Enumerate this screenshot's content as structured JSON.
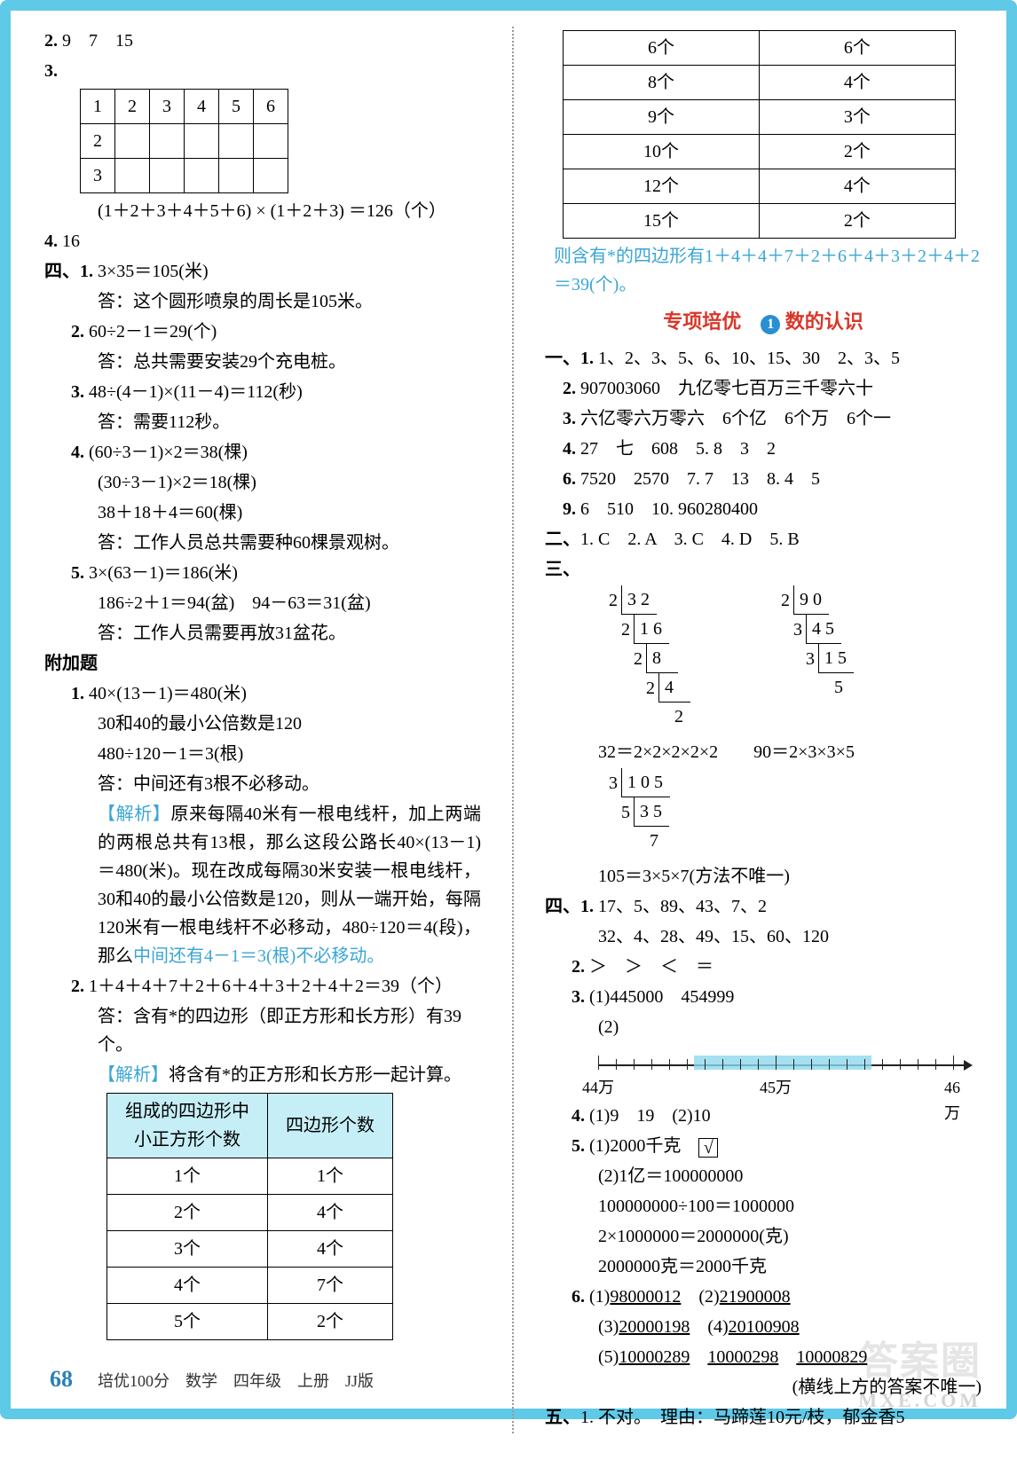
{
  "left": {
    "q2": {
      "label": "2.",
      "vals": "9　7　15"
    },
    "q3": {
      "label": "3.",
      "table_rows": [
        [
          "1",
          "2",
          "3",
          "4",
          "5",
          "6"
        ],
        [
          "2",
          "",
          "",
          "",
          "",
          ""
        ],
        [
          "3",
          "",
          "",
          "",
          "",
          ""
        ]
      ],
      "expr": "(1＋2＋3＋4＋5＋6) × (1＋2＋3) ＝126（个）"
    },
    "q4": {
      "label": "4.",
      "val": "16"
    },
    "sec4": {
      "label": "四、",
      "items": [
        {
          "n": "1.",
          "lines": [
            "3×35＝105(米)",
            "答：这个圆形喷泉的周长是105米。"
          ]
        },
        {
          "n": "2.",
          "lines": [
            "60÷2－1＝29(个)",
            "答：总共需要安装29个充电桩。"
          ]
        },
        {
          "n": "3.",
          "lines": [
            "48÷(4－1)×(11－4)＝112(秒)",
            "答：需要112秒。"
          ]
        },
        {
          "n": "4.",
          "lines": [
            "(60÷3－1)×2＝38(棵)",
            "(30÷3－1)×2＝18(棵)",
            "38＋18＋4＝60(棵)",
            "答：工作人员总共需要种60棵景观树。"
          ]
        },
        {
          "n": "5.",
          "lines": [
            "3×(63－1)＝186(米)",
            "186÷2＋1＝94(盆)　94－63＝31(盆)",
            "答：工作人员需要再放31盆花。"
          ]
        }
      ]
    },
    "extra": {
      "title": "附加题",
      "q1": {
        "n": "1.",
        "lines": [
          "40×(13－1)＝480(米)",
          "30和40的最小公倍数是120",
          "480÷120－1＝3(根)",
          "答：中间还有3根不必移动。"
        ],
        "analysis_label": "【解析】",
        "analysis": "原来每隔40米有一根电线杆，加上两端的两根总共有13根，那么这段公路长40×(13－1)＝480(米)。现在改成每隔30米安装一根电线杆，30和40的最小公倍数是120，则从一端开始，每隔120米有一根电线杆不必移动，480÷120＝4(段)，那么",
        "analysis_hl": "中间还有4－1＝3(根)不必移动。"
      },
      "q2": {
        "n": "2.",
        "lines": [
          "1＋4＋4＋7＋2＋6＋4＋3＋2＋4＋2＝39（个）",
          "答：含有*的四边形（即正方形和长方形）有39个。"
        ],
        "analysis_label": "【解析】",
        "analysis": "将含有*的正方形和长方形一起计算。",
        "table_header": [
          "组成的四边形中\n小正方形个数",
          "四边形个数"
        ],
        "table_rows": [
          [
            "1个",
            "1个"
          ],
          [
            "2个",
            "4个"
          ],
          [
            "3个",
            "4个"
          ],
          [
            "4个",
            "7个"
          ],
          [
            "5个",
            "2个"
          ]
        ]
      }
    }
  },
  "right": {
    "cont_table_rows": [
      [
        "6个",
        "6个"
      ],
      [
        "8个",
        "4个"
      ],
      [
        "9个",
        "3个"
      ],
      [
        "10个",
        "2个"
      ],
      [
        "12个",
        "4个"
      ],
      [
        "15个",
        "2个"
      ]
    ],
    "cont_hl": "则含有*的四边形有1＋4＋4＋7＋2＋6＋4＋3＋2＋4＋2＝39(个)。",
    "section_title_a": "专项培优",
    "section_title_b": "数的认识",
    "sec1": {
      "label": "一、",
      "items": [
        "1. 1、2、3、5、6、10、15、30　2、3、5",
        "2. 907003060　九亿零七百万三千零六十",
        "3. 六亿零六万零六　6个亿　6个万　6个一",
        "4. 27　七　608　5. 8　3　2",
        "6. 7520　2570　7. 7　13　8. 4　5",
        "9. 6　510　10. 960280400"
      ]
    },
    "sec2": {
      "label": "二、",
      "text": "1. C　2. A　3. C　4. D　5. B"
    },
    "sec3": {
      "label": "三、",
      "tree1": {
        "steps": [
          [
            "2",
            "3 2"
          ],
          [
            "2",
            "1 6"
          ],
          [
            "2",
            "8"
          ],
          [
            "2",
            "4"
          ],
          [
            "",
            "2"
          ]
        ],
        "result": "32＝2×2×2×2×2"
      },
      "tree2": {
        "steps": [
          [
            "2",
            "9 0"
          ],
          [
            "3",
            "4 5"
          ],
          [
            "3",
            "1 5"
          ],
          [
            "",
            "5"
          ]
        ],
        "result": "90＝2×3×3×5"
      },
      "tree3": {
        "steps": [
          [
            "3",
            "1 0 5"
          ],
          [
            "5",
            "3 5"
          ],
          [
            "",
            "7"
          ]
        ],
        "result": "105＝3×5×7(方法不唯一)"
      }
    },
    "sec4": {
      "label": "四、",
      "q1": {
        "n": "1.",
        "lines": [
          "17、5、89、43、7、2",
          "32、4、28、49、15、60、120"
        ]
      },
      "q2": {
        "n": "2.",
        "text": "＞　＞　＜　＝"
      },
      "q3": {
        "n": "3.",
        "p1": "(1)445000　454999",
        "p2": "(2)",
        "numberline": {
          "labels": [
            "44万",
            "45万",
            "46万"
          ],
          "positions": [
            0,
            50,
            100
          ],
          "bar_start": 27,
          "bar_end": 77
        }
      },
      "q4": {
        "n": "4.",
        "text": "(1)9　19　(2)10"
      },
      "q5": {
        "n": "5.",
        "p1": "(1)2000千克",
        "check": "√",
        "lines": [
          "(2)1亿＝100000000",
          "100000000÷100＝1000000",
          "2×1000000＝2000000(克)",
          "2000000克＝2000千克"
        ]
      },
      "q6": {
        "n": "6.",
        "lines": [
          "(1)98000012　(2)21900008",
          "(3)20000198　(4)20100908",
          "(5)10000289　10000298　10000829"
        ],
        "note": "(横线上方的答案不唯一)"
      }
    },
    "sec5": {
      "label": "五、",
      "text": "1. 不对。　理由：马蹄莲10元/枝，郁金香5"
    }
  },
  "footer": {
    "page": "68",
    "text": "培优100分　数学　四年级　上册　JJ版"
  },
  "watermark": {
    "a": "答案圈",
    "b": "MXE.COM"
  }
}
